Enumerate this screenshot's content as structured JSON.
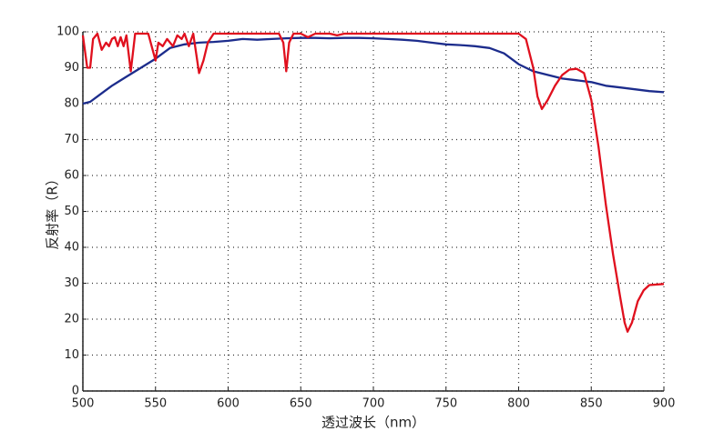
{
  "chart_data": {
    "type": "line",
    "xlabel": "透过波长（nm）",
    "ylabel": "反射率（R）",
    "xlim": [
      500,
      900
    ],
    "xticks": [
      500,
      550,
      600,
      650,
      700,
      750,
      800,
      850,
      900
    ],
    "ylim": [
      0,
      100
    ],
    "yticks": [
      0,
      10,
      20,
      30,
      40,
      50,
      60,
      70,
      80,
      90,
      100
    ],
    "grid": true,
    "series": [
      {
        "color": "#1c2c8c",
        "x": [
          500,
          505,
          510,
          515,
          520,
          530,
          540,
          550,
          555,
          560,
          570,
          580,
          590,
          600,
          610,
          620,
          630,
          640,
          650,
          660,
          670,
          680,
          690,
          700,
          710,
          720,
          730,
          740,
          750,
          760,
          770,
          780,
          790,
          800,
          810,
          820,
          830,
          840,
          850,
          860,
          870,
          880,
          890,
          900
        ],
        "values": [
          80,
          80.5,
          82,
          83.5,
          85,
          87.5,
          90,
          92.5,
          94,
          95.5,
          96.5,
          97,
          97.2,
          97.5,
          98,
          97.8,
          98,
          98.2,
          98.3,
          98.3,
          98.2,
          98.3,
          98.3,
          98.2,
          98,
          97.8,
          97.5,
          97,
          96.5,
          96.3,
          96,
          95.5,
          94,
          91,
          89,
          88,
          87,
          86.5,
          86,
          85,
          84.5,
          84,
          83.5,
          83.2
        ]
      },
      {
        "color": "#e0101e",
        "x": [
          500,
          503,
          505,
          507,
          510,
          513,
          516,
          518,
          520,
          522,
          524,
          526,
          528,
          530,
          533,
          536,
          540,
          545,
          550,
          552,
          555,
          558,
          562,
          565,
          568,
          570,
          573,
          576,
          580,
          583,
          586,
          590,
          600,
          610,
          620,
          630,
          635,
          638,
          640,
          642,
          645,
          650,
          655,
          660,
          670,
          675,
          680,
          690,
          700,
          750,
          790,
          800,
          805,
          810,
          813,
          816,
          820,
          825,
          830,
          835,
          840,
          845,
          850,
          855,
          860,
          865,
          870,
          873,
          875,
          878,
          882,
          886,
          890,
          900
        ],
        "values": [
          99,
          90,
          90,
          98,
          99.5,
          95,
          97,
          96,
          98,
          98.5,
          96,
          98.5,
          96,
          99,
          89,
          99.5,
          99.5,
          99.5,
          92,
          97,
          96,
          98,
          96,
          99,
          98,
          99.5,
          96,
          99.5,
          88.5,
          92,
          97,
          99.5,
          99.5,
          99.5,
          99.5,
          99.5,
          99.5,
          97,
          89,
          97,
          99.5,
          99.5,
          98.5,
          99.5,
          99.5,
          99,
          99.5,
          99.5,
          99.5,
          99.5,
          99.5,
          99.5,
          98,
          90,
          82,
          78.5,
          81,
          85,
          88,
          89.5,
          89.7,
          88.5,
          81,
          68,
          52,
          38,
          26,
          19,
          16.5,
          19,
          25,
          28,
          29.5,
          29.8
        ]
      }
    ]
  }
}
